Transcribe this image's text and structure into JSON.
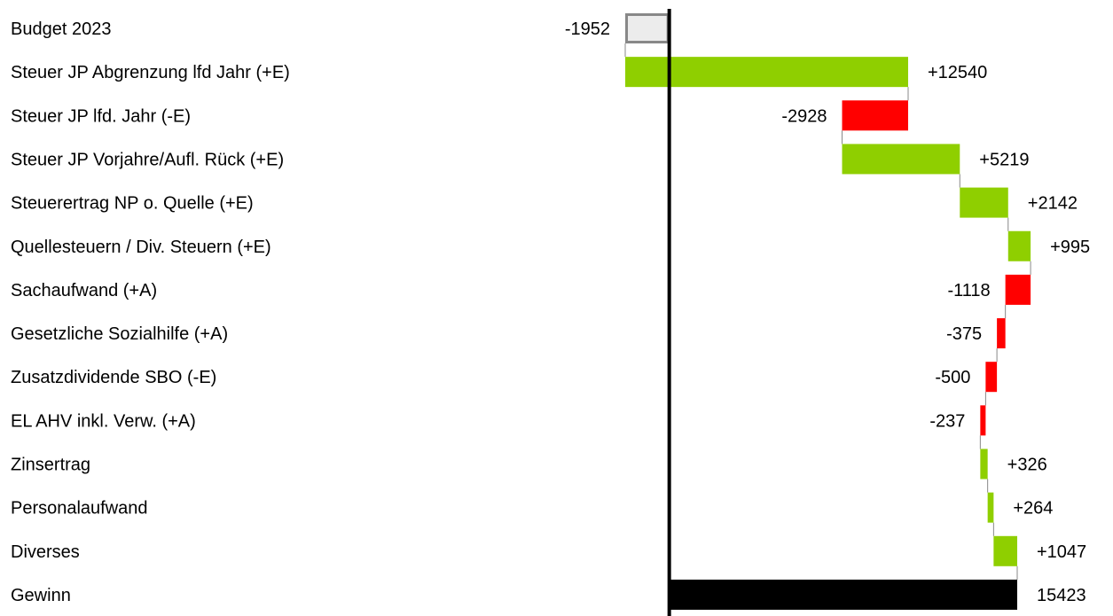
{
  "chart_data": {
    "type": "bar",
    "orientation": "horizontal",
    "subtype": "waterfall",
    "grid": false,
    "xlim": [
      -1952,
      15423
    ],
    "categories": [
      "Budget 2023",
      "Steuer JP Abgrenzung lfd Jahr (+E)",
      "Steuer JP lfd. Jahr (-E)",
      "Steuer JP Vorjahre/Aufl. Rück (+E)",
      "Steuerertrag  NP o. Quelle (+E)",
      "Quellesteuern  / Div.  Steuern (+E)",
      "Sachaufwand  (+A)",
      "Gesetzliche Sozialhilfe (+A)",
      "Zusatzdividende  SBO (-E)",
      "EL AHV inkl. Verw. (+A)",
      "Zinsertrag",
      "Personalaufwand",
      "Diverses",
      "Gewinn"
    ],
    "values": [
      -1952,
      12540,
      -2928,
      5219,
      2142,
      995,
      -1118,
      -375,
      -500,
      -237,
      326,
      264,
      1047,
      15423
    ],
    "value_labels": [
      "-1952",
      "+12540",
      "-2928",
      "+5219",
      "+2142",
      "+995",
      "-1118",
      "-375",
      "-500",
      "-237",
      "+326",
      "+264",
      "+1047",
      "15423"
    ],
    "kinds": [
      "start",
      "delta",
      "delta",
      "delta",
      "delta",
      "delta",
      "delta",
      "delta",
      "delta",
      "delta",
      "delta",
      "delta",
      "delta",
      "total"
    ],
    "colors": {
      "increase": "#8fcf00",
      "decrease": "#ff0000",
      "total": "#000000",
      "start_fill": "#ececec",
      "start_stroke": "#888888",
      "axis": "#000000",
      "connector": "#888888"
    }
  }
}
